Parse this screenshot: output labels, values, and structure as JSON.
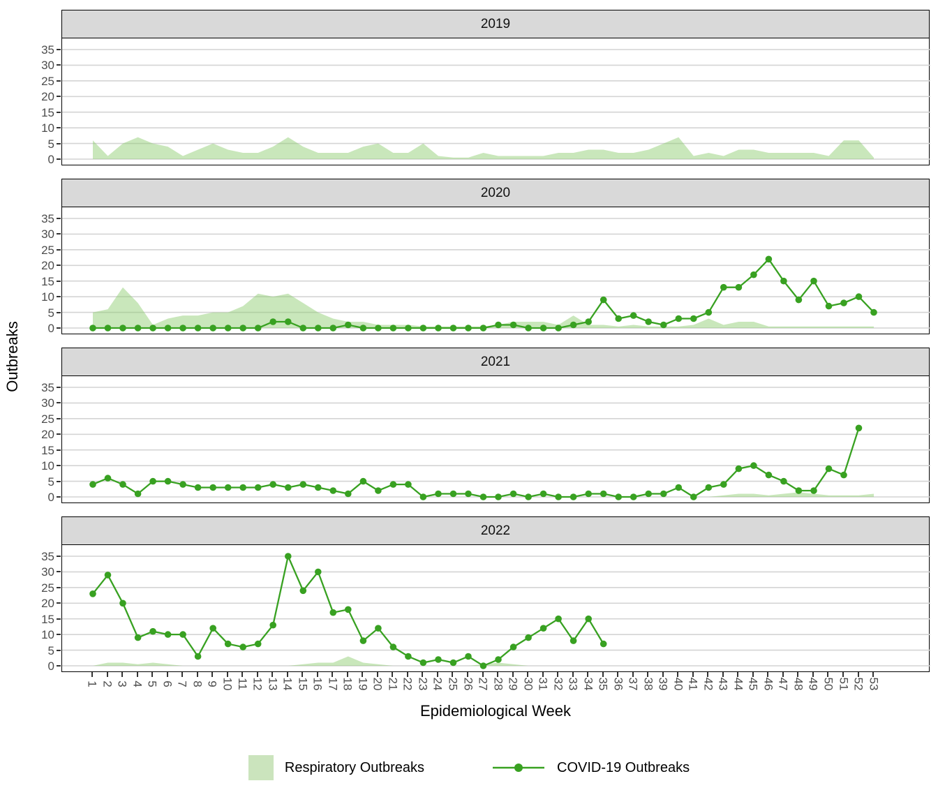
{
  "y_axis_title": "Outbreaks",
  "x_axis_title": "Epidemiological Week",
  "legend": {
    "respiratory_label": "Respiratory Outbreaks",
    "covid_label": "COVID-19 Outbreaks"
  },
  "colors": {
    "respiratory_fill_base": "#8fcc70",
    "respiratory_fill_opacity": 0.48,
    "respiratory_legend_swatch": "#cbe4bd",
    "covid_line": "#38a121",
    "strip_bg": "#d9d9d9",
    "gridline": "#d4d4d4",
    "axis_text": "#4d4d4d",
    "panel_border": "#000000"
  },
  "chart_data": {
    "type": "area",
    "subtype": "faceted area + line-with-points, one facet per year",
    "xlabel": "Epidemiological Week",
    "ylabel": "Outbreaks",
    "ylim": [
      0,
      35
    ],
    "yticks": [
      0,
      5,
      10,
      15,
      20,
      25,
      30,
      35
    ],
    "grid": "horizontal major gridlines only",
    "legend_position": "bottom",
    "series_names": [
      "Respiratory Outbreaks",
      "COVID-19 Outbreaks"
    ],
    "x": [
      1,
      2,
      3,
      4,
      5,
      6,
      7,
      8,
      9,
      10,
      11,
      12,
      13,
      14,
      15,
      16,
      17,
      18,
      19,
      20,
      21,
      22,
      23,
      24,
      25,
      26,
      27,
      28,
      29,
      30,
      31,
      32,
      33,
      34,
      35,
      36,
      37,
      38,
      39,
      40,
      41,
      42,
      43,
      44,
      45,
      46,
      47,
      48,
      49,
      50,
      51,
      52,
      53
    ],
    "facets": [
      {
        "year": "2019",
        "respiratory": [
          6,
          1,
          5,
          7,
          5,
          4,
          1,
          3,
          5,
          3,
          2,
          2,
          4,
          7,
          4,
          2,
          2,
          2,
          4,
          5,
          2,
          2,
          5,
          1,
          0.5,
          0.5,
          2,
          1,
          1,
          1,
          1,
          2,
          2,
          3,
          3,
          2,
          2,
          3,
          5,
          7,
          1,
          2,
          1,
          3,
          3,
          2,
          2,
          2,
          2,
          1,
          6,
          6,
          0.5
        ],
        "covid": null
      },
      {
        "year": "2020",
        "respiratory": [
          5,
          6,
          13,
          8,
          1,
          3,
          4,
          4,
          5,
          5,
          7,
          11,
          10,
          11,
          8,
          5,
          3,
          2,
          2,
          1,
          1,
          1,
          0.5,
          0.5,
          0.5,
          0.5,
          0.5,
          1,
          2,
          2,
          2,
          1,
          4,
          1,
          1,
          0.5,
          1,
          0.5,
          0.5,
          0.5,
          1,
          3,
          1,
          2,
          2,
          0.5,
          0.5,
          0.5,
          0.5,
          0.5,
          0.5,
          0.5,
          0.5
        ],
        "covid": [
          0,
          0,
          0,
          0,
          0,
          0,
          0,
          0,
          0,
          0,
          0,
          0,
          2,
          2,
          0,
          0,
          0,
          1,
          0,
          0,
          0,
          0,
          0,
          0,
          0,
          0,
          0,
          1,
          1,
          0,
          0,
          0,
          1,
          2,
          9,
          3,
          4,
          2,
          1,
          3,
          3,
          5,
          13,
          13,
          17,
          22,
          15,
          9,
          15,
          7,
          8,
          10,
          5
        ]
      },
      {
        "year": "2021",
        "respiratory": [
          0,
          0,
          0,
          0,
          0,
          0,
          0,
          0,
          0,
          0,
          0,
          0,
          0,
          0,
          0,
          0,
          0,
          0,
          0,
          0,
          0,
          0,
          0,
          0,
          0,
          0,
          0,
          0,
          0,
          0,
          0,
          0,
          0,
          0,
          0,
          0,
          0,
          0,
          0,
          0,
          0,
          0,
          0.5,
          1,
          1,
          0.5,
          1,
          1.5,
          1,
          0.5,
          0.5,
          0.5,
          1
        ],
        "covid": [
          4,
          6,
          4,
          1,
          5,
          5,
          4,
          3,
          3,
          3,
          3,
          3,
          4,
          3,
          4,
          3,
          2,
          1,
          5,
          2,
          4,
          4,
          0,
          1,
          1,
          1,
          0,
          0,
          1,
          0,
          1,
          0,
          0,
          1,
          1,
          0,
          0,
          1,
          1,
          3,
          0,
          3,
          4,
          9,
          10,
          7,
          5,
          2,
          2,
          9,
          7,
          22,
          null
        ]
      },
      {
        "year": "2022",
        "respiratory": [
          0,
          1,
          1,
          0.5,
          1,
          0.5,
          0,
          0,
          0,
          0,
          0,
          0,
          0,
          0,
          0.5,
          1,
          1,
          3,
          1,
          0.5,
          0,
          0,
          0,
          0,
          0,
          0,
          0.5,
          1,
          0.5,
          0,
          0,
          0,
          0,
          0,
          0,
          0,
          0,
          0,
          0,
          0,
          0,
          0,
          0,
          0,
          0,
          0,
          0,
          0,
          0,
          0,
          0,
          0,
          0
        ],
        "covid": [
          23,
          29,
          20,
          9,
          11,
          10,
          10,
          3,
          12,
          7,
          6,
          7,
          13,
          35,
          24,
          30,
          17,
          18,
          8,
          12,
          6,
          3,
          1,
          2,
          1,
          3,
          0,
          2,
          6,
          9,
          12,
          15,
          8,
          15,
          7,
          null,
          null,
          null,
          null,
          null,
          null,
          null,
          null,
          null,
          null,
          null,
          null,
          null,
          null,
          null,
          null,
          null,
          null
        ]
      }
    ]
  }
}
